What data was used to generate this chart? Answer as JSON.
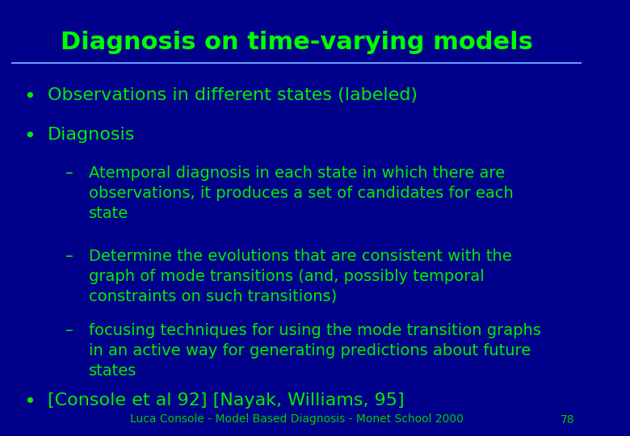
{
  "title": "Diagnosis on time-varying models",
  "title_color": "#00ff00",
  "title_fontsize": 22,
  "background_color": "#00008B",
  "text_color": "#00ee00",
  "separator_color": "#6699ff",
  "bullet_points": [
    "Observations in different states (labeled)",
    "Diagnosis"
  ],
  "sub_bullets": [
    "Atemporal diagnosis in each state in which there are\nobservations, it produces a set of candidates for each\nstate",
    "Determine the evolutions that are consistent with the\ngraph of mode transitions (and, possibly temporal\nconstraints on such transitions)",
    "focusing techniques for using the mode transition graphs\nin an active way for generating predictions about future\nstates"
  ],
  "last_bullet": "[Console et al 92] [Nayak, Williams, 95]",
  "footer": "Luca Console - Model Based Diagnosis - Monet School 2000",
  "page_number": "78",
  "footer_color": "#00cc00",
  "footer_fontsize": 10,
  "bullet_fontsize": 16,
  "sub_bullet_fontsize": 14
}
